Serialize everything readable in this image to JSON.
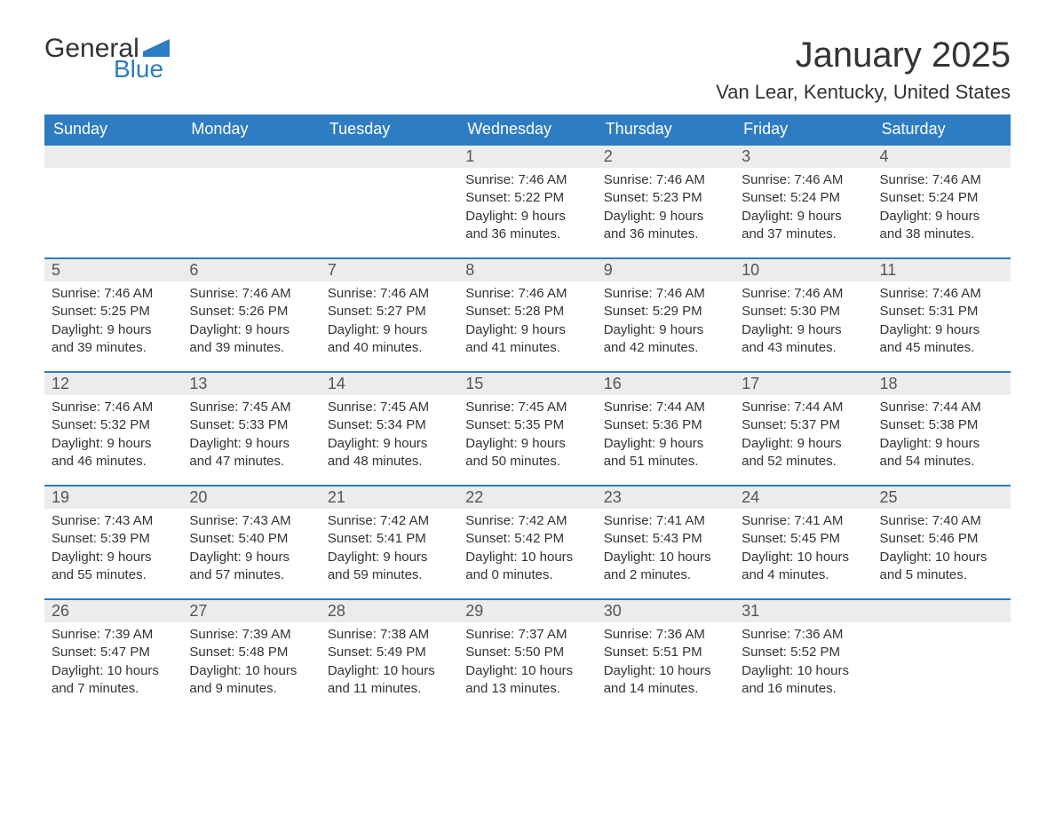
{
  "logo": {
    "text1": "General",
    "text2": "Blue",
    "flag_color": "#2e7cc2"
  },
  "title": "January 2025",
  "location": "Van Lear, Kentucky, United States",
  "colors": {
    "header_bg": "#2e7cc2",
    "header_text": "#ffffff",
    "daynum_bg": "#ececec",
    "border_top": "#2e7cc2",
    "body_text": "#333333"
  },
  "weekdays": [
    "Sunday",
    "Monday",
    "Tuesday",
    "Wednesday",
    "Thursday",
    "Friday",
    "Saturday"
  ],
  "weeks": [
    [
      null,
      null,
      null,
      {
        "n": "1",
        "sunrise": "7:46 AM",
        "sunset": "5:22 PM",
        "daylight": "9 hours and 36 minutes."
      },
      {
        "n": "2",
        "sunrise": "7:46 AM",
        "sunset": "5:23 PM",
        "daylight": "9 hours and 36 minutes."
      },
      {
        "n": "3",
        "sunrise": "7:46 AM",
        "sunset": "5:24 PM",
        "daylight": "9 hours and 37 minutes."
      },
      {
        "n": "4",
        "sunrise": "7:46 AM",
        "sunset": "5:24 PM",
        "daylight": "9 hours and 38 minutes."
      }
    ],
    [
      {
        "n": "5",
        "sunrise": "7:46 AM",
        "sunset": "5:25 PM",
        "daylight": "9 hours and 39 minutes."
      },
      {
        "n": "6",
        "sunrise": "7:46 AM",
        "sunset": "5:26 PM",
        "daylight": "9 hours and 39 minutes."
      },
      {
        "n": "7",
        "sunrise": "7:46 AM",
        "sunset": "5:27 PM",
        "daylight": "9 hours and 40 minutes."
      },
      {
        "n": "8",
        "sunrise": "7:46 AM",
        "sunset": "5:28 PM",
        "daylight": "9 hours and 41 minutes."
      },
      {
        "n": "9",
        "sunrise": "7:46 AM",
        "sunset": "5:29 PM",
        "daylight": "9 hours and 42 minutes."
      },
      {
        "n": "10",
        "sunrise": "7:46 AM",
        "sunset": "5:30 PM",
        "daylight": "9 hours and 43 minutes."
      },
      {
        "n": "11",
        "sunrise": "7:46 AM",
        "sunset": "5:31 PM",
        "daylight": "9 hours and 45 minutes."
      }
    ],
    [
      {
        "n": "12",
        "sunrise": "7:46 AM",
        "sunset": "5:32 PM",
        "daylight": "9 hours and 46 minutes."
      },
      {
        "n": "13",
        "sunrise": "7:45 AM",
        "sunset": "5:33 PM",
        "daylight": "9 hours and 47 minutes."
      },
      {
        "n": "14",
        "sunrise": "7:45 AM",
        "sunset": "5:34 PM",
        "daylight": "9 hours and 48 minutes."
      },
      {
        "n": "15",
        "sunrise": "7:45 AM",
        "sunset": "5:35 PM",
        "daylight": "9 hours and 50 minutes."
      },
      {
        "n": "16",
        "sunrise": "7:44 AM",
        "sunset": "5:36 PM",
        "daylight": "9 hours and 51 minutes."
      },
      {
        "n": "17",
        "sunrise": "7:44 AM",
        "sunset": "5:37 PM",
        "daylight": "9 hours and 52 minutes."
      },
      {
        "n": "18",
        "sunrise": "7:44 AM",
        "sunset": "5:38 PM",
        "daylight": "9 hours and 54 minutes."
      }
    ],
    [
      {
        "n": "19",
        "sunrise": "7:43 AM",
        "sunset": "5:39 PM",
        "daylight": "9 hours and 55 minutes."
      },
      {
        "n": "20",
        "sunrise": "7:43 AM",
        "sunset": "5:40 PM",
        "daylight": "9 hours and 57 minutes."
      },
      {
        "n": "21",
        "sunrise": "7:42 AM",
        "sunset": "5:41 PM",
        "daylight": "9 hours and 59 minutes."
      },
      {
        "n": "22",
        "sunrise": "7:42 AM",
        "sunset": "5:42 PM",
        "daylight": "10 hours and 0 minutes."
      },
      {
        "n": "23",
        "sunrise": "7:41 AM",
        "sunset": "5:43 PM",
        "daylight": "10 hours and 2 minutes."
      },
      {
        "n": "24",
        "sunrise": "7:41 AM",
        "sunset": "5:45 PM",
        "daylight": "10 hours and 4 minutes."
      },
      {
        "n": "25",
        "sunrise": "7:40 AM",
        "sunset": "5:46 PM",
        "daylight": "10 hours and 5 minutes."
      }
    ],
    [
      {
        "n": "26",
        "sunrise": "7:39 AM",
        "sunset": "5:47 PM",
        "daylight": "10 hours and 7 minutes."
      },
      {
        "n": "27",
        "sunrise": "7:39 AM",
        "sunset": "5:48 PM",
        "daylight": "10 hours and 9 minutes."
      },
      {
        "n": "28",
        "sunrise": "7:38 AM",
        "sunset": "5:49 PM",
        "daylight": "10 hours and 11 minutes."
      },
      {
        "n": "29",
        "sunrise": "7:37 AM",
        "sunset": "5:50 PM",
        "daylight": "10 hours and 13 minutes."
      },
      {
        "n": "30",
        "sunrise": "7:36 AM",
        "sunset": "5:51 PM",
        "daylight": "10 hours and 14 minutes."
      },
      {
        "n": "31",
        "sunrise": "7:36 AM",
        "sunset": "5:52 PM",
        "daylight": "10 hours and 16 minutes."
      },
      null
    ]
  ],
  "labels": {
    "sunrise": "Sunrise: ",
    "sunset": "Sunset: ",
    "daylight": "Daylight: "
  }
}
